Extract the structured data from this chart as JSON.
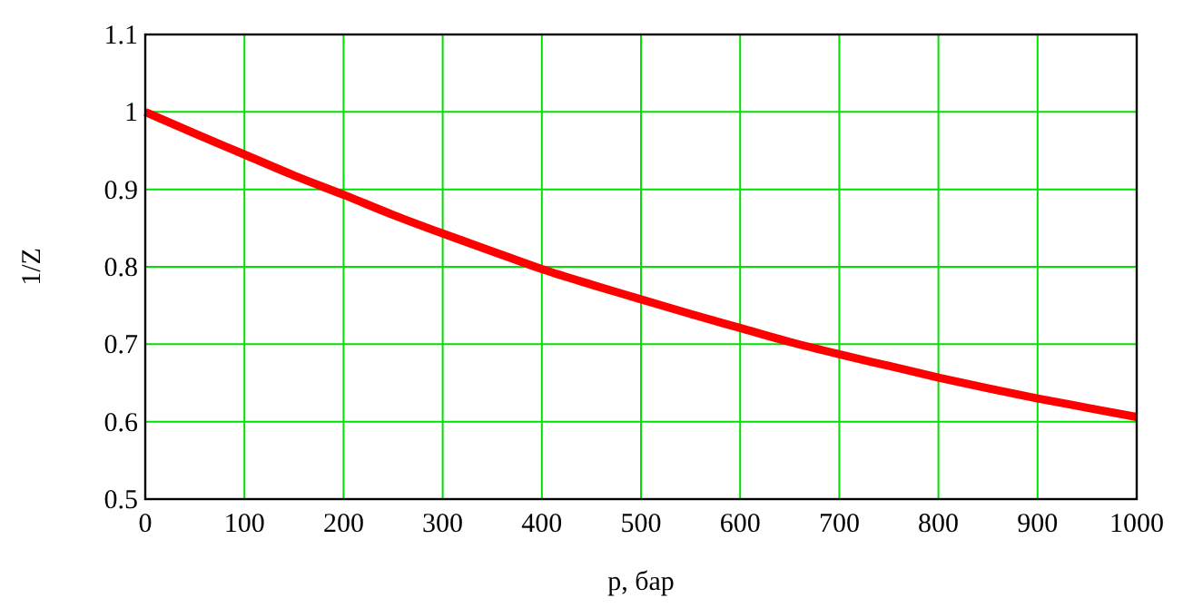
{
  "chart_data": {
    "type": "line",
    "xlabel": "p, бар",
    "ylabel": "1/Z",
    "x": [
      0,
      50,
      100,
      150,
      200,
      250,
      300,
      350,
      400,
      450,
      500,
      550,
      600,
      650,
      700,
      750,
      800,
      850,
      900,
      950,
      1000
    ],
    "series": [
      {
        "color": "#ff0000",
        "values": [
          1.0,
          0.972,
          0.945,
          0.918,
          0.893,
          0.867,
          0.843,
          0.82,
          0.797,
          0.777,
          0.758,
          0.739,
          0.721,
          0.703,
          0.687,
          0.672,
          0.657,
          0.643,
          0.63,
          0.618,
          0.606
        ]
      }
    ],
    "xlim": [
      0,
      1000
    ],
    "xticks": [
      0,
      100,
      200,
      300,
      400,
      500,
      600,
      700,
      800,
      900,
      1000
    ],
    "ylim": [
      0.5,
      1.1
    ],
    "yticks": [
      0.5,
      0.6,
      0.7,
      0.8,
      0.9,
      1,
      1.1
    ],
    "grid": true,
    "marker": "none",
    "line_style": "solid"
  }
}
